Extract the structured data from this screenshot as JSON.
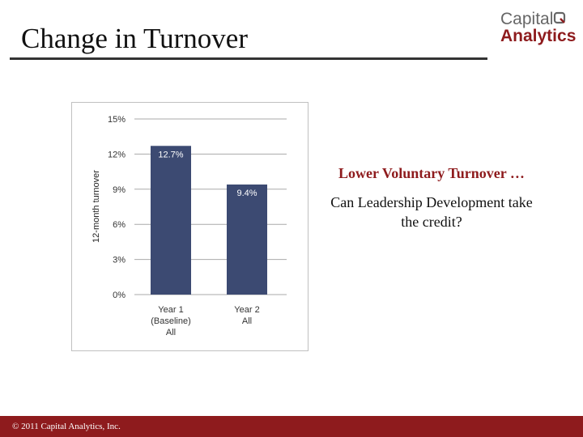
{
  "slide": {
    "title": "Change in Turnover",
    "logo_line1": "Capital",
    "logo_line2": "Analytics",
    "headline": "Lower Voluntary Turnover …",
    "question": "Can Leadership Development take the credit?",
    "footer": "© 2011 Capital Analytics, Inc."
  },
  "colors": {
    "brand_red": "#8e1b1d",
    "bar_fill": "#3c4a72",
    "gridline": "#aaaaaa"
  },
  "chart_data": {
    "type": "bar",
    "categories": [
      [
        "Year 1",
        "(Baseline)",
        "All"
      ],
      [
        "Year 2",
        "All"
      ]
    ],
    "values": [
      12.7,
      9.4
    ],
    "value_labels": [
      "12.7%",
      "9.4%"
    ],
    "ylabel": "12-month turnover",
    "ylim": [
      0,
      15
    ],
    "yticks": [
      0,
      3,
      6,
      9,
      12,
      15
    ],
    "ytick_labels": [
      "0%",
      "3%",
      "6%",
      "9%",
      "12%",
      "15%"
    ],
    "grid": true,
    "legend": "none"
  }
}
